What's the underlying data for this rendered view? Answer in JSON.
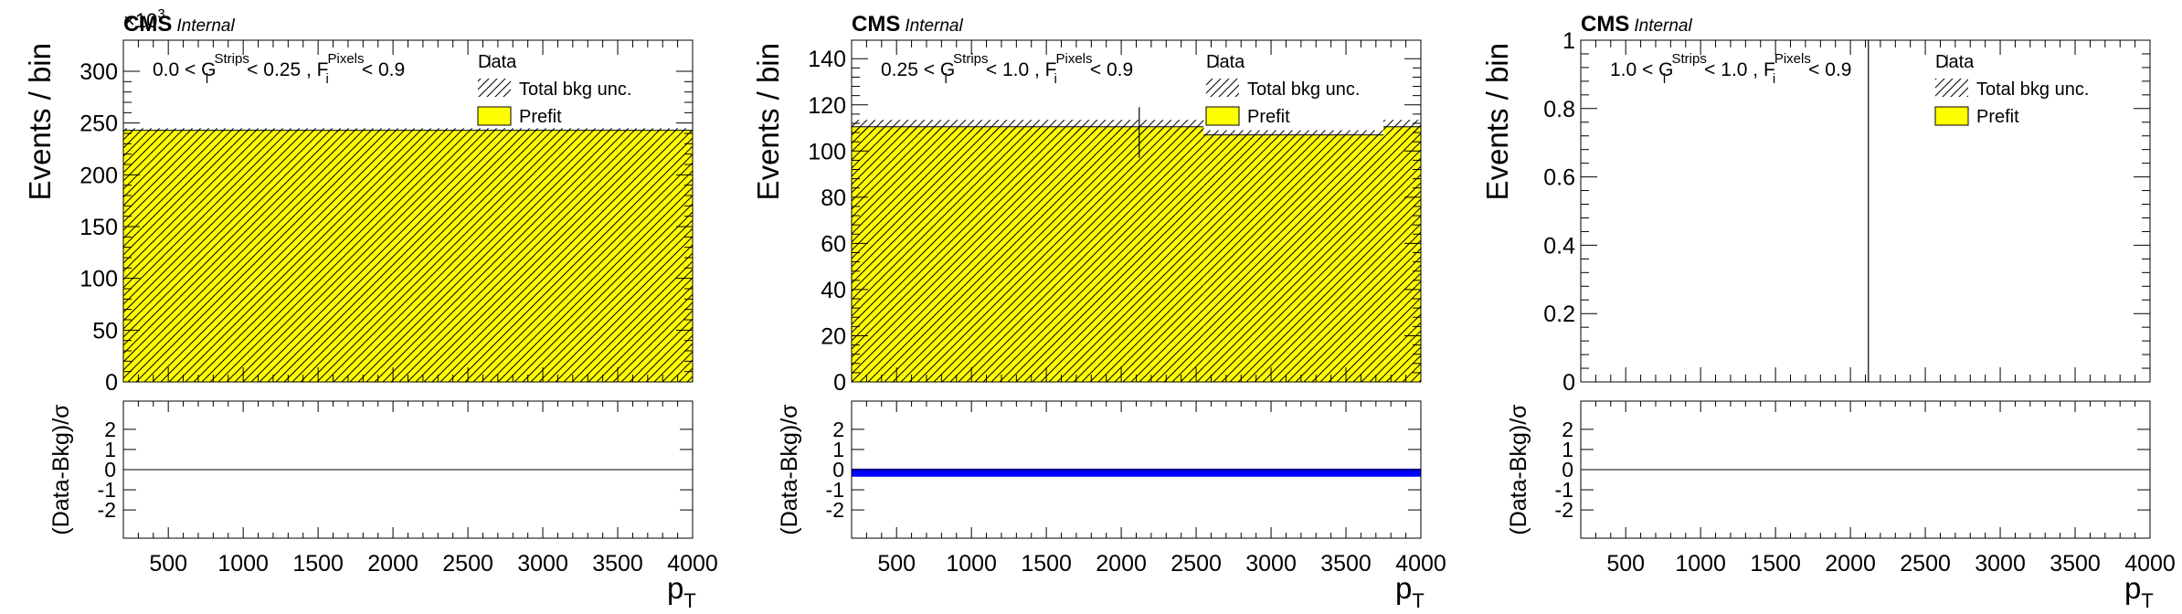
{
  "colors": {
    "prefit_fill": "#ffff00",
    "pull_band": "#0000ff",
    "axis": "#000000"
  },
  "common": {
    "experiment": "CMS",
    "status": "Internal",
    "main_ylabel": "Events / bin",
    "ratio_ylabel": "(Data-Bkg)/σ",
    "xlabel_main": "p",
    "xlabel_sub": "T",
    "legend_data": "Data",
    "legend_unc": "Total bkg unc.",
    "legend_prefit": "Prefit"
  },
  "chart_data": [
    {
      "type": "bar",
      "selection": {
        "lo": "0.0",
        "g": "G",
        "g_sup": "Strips",
        "g_sub": "i",
        "mid": "< 0.25",
        "f": "F",
        "f_sup": "Pixels",
        "f_sub": "i",
        "hi": "< 0.9"
      },
      "exponent_label": "×10",
      "exponent_power": "3",
      "xlim": [
        200,
        4000
      ],
      "xticks": [
        500,
        1000,
        1500,
        2000,
        2500,
        3000,
        3500,
        4000
      ],
      "ylim": [
        0,
        330
      ],
      "yticks": [
        0,
        50,
        100,
        150,
        200,
        250,
        300
      ],
      "bins": [
        {
          "lo": 200,
          "hi": 2500,
          "prefit": 243,
          "unc": 2
        },
        {
          "lo": 2500,
          "hi": 3750,
          "prefit": 243,
          "unc": 2
        },
        {
          "lo": 3750,
          "hi": 4000,
          "prefit": 243,
          "unc": 2
        }
      ],
      "data_points": [],
      "ratio_ylim": [
        -3.4,
        3.4
      ],
      "ratio_yticks": [
        -2,
        -1,
        0,
        1,
        2
      ],
      "pull_band": null
    },
    {
      "type": "bar",
      "selection": {
        "lo": "0.25",
        "g": "G",
        "g_sup": "Strips",
        "g_sub": "i",
        "mid": "< 1.0",
        "f": "F",
        "f_sup": "Pixels",
        "f_sub": "i",
        "hi": "< 0.9"
      },
      "exponent_label": "",
      "exponent_power": "",
      "xlim": [
        200,
        4000
      ],
      "xticks": [
        500,
        1000,
        1500,
        2000,
        2500,
        3000,
        3500,
        4000
      ],
      "ylim": [
        0,
        148
      ],
      "yticks": [
        0,
        20,
        40,
        60,
        80,
        100,
        120,
        140
      ],
      "bins": [
        {
          "lo": 200,
          "hi": 2550,
          "prefit": 110.5,
          "unc": 3
        },
        {
          "lo": 2550,
          "hi": 3750,
          "prefit": 107,
          "unc": 2
        },
        {
          "lo": 3750,
          "hi": 4000,
          "prefit": 110.5,
          "unc": 3
        }
      ],
      "data_points": [
        {
          "x": 2120,
          "y": 108,
          "err": 11
        }
      ],
      "ratio_ylim": [
        -3.4,
        3.4
      ],
      "ratio_yticks": [
        -2,
        -1,
        0,
        1,
        2
      ],
      "pull_band": [
        -0.35,
        0.05
      ]
    },
    {
      "type": "bar",
      "selection": {
        "lo": "1.0",
        "g": "G",
        "g_sup": "Strips",
        "g_sub": "i",
        "mid": "< 1.0",
        "f": "F",
        "f_sup": "Pixels",
        "f_sub": "i",
        "hi": "< 0.9"
      },
      "exponent_label": "",
      "exponent_power": "",
      "xlim": [
        200,
        4000
      ],
      "xticks": [
        500,
        1000,
        1500,
        2000,
        2500,
        3000,
        3500,
        4000
      ],
      "ylim": [
        0,
        1
      ],
      "yticks": [
        0,
        0.2,
        0.4,
        0.6,
        0.8,
        1
      ],
      "bins": [],
      "data_points": [
        {
          "x": 2120,
          "y": 0.5,
          "err": 0.5
        }
      ],
      "ratio_ylim": [
        -3.4,
        3.4
      ],
      "ratio_yticks": [
        -2,
        -1,
        0,
        1,
        2
      ],
      "pull_band": null
    }
  ]
}
